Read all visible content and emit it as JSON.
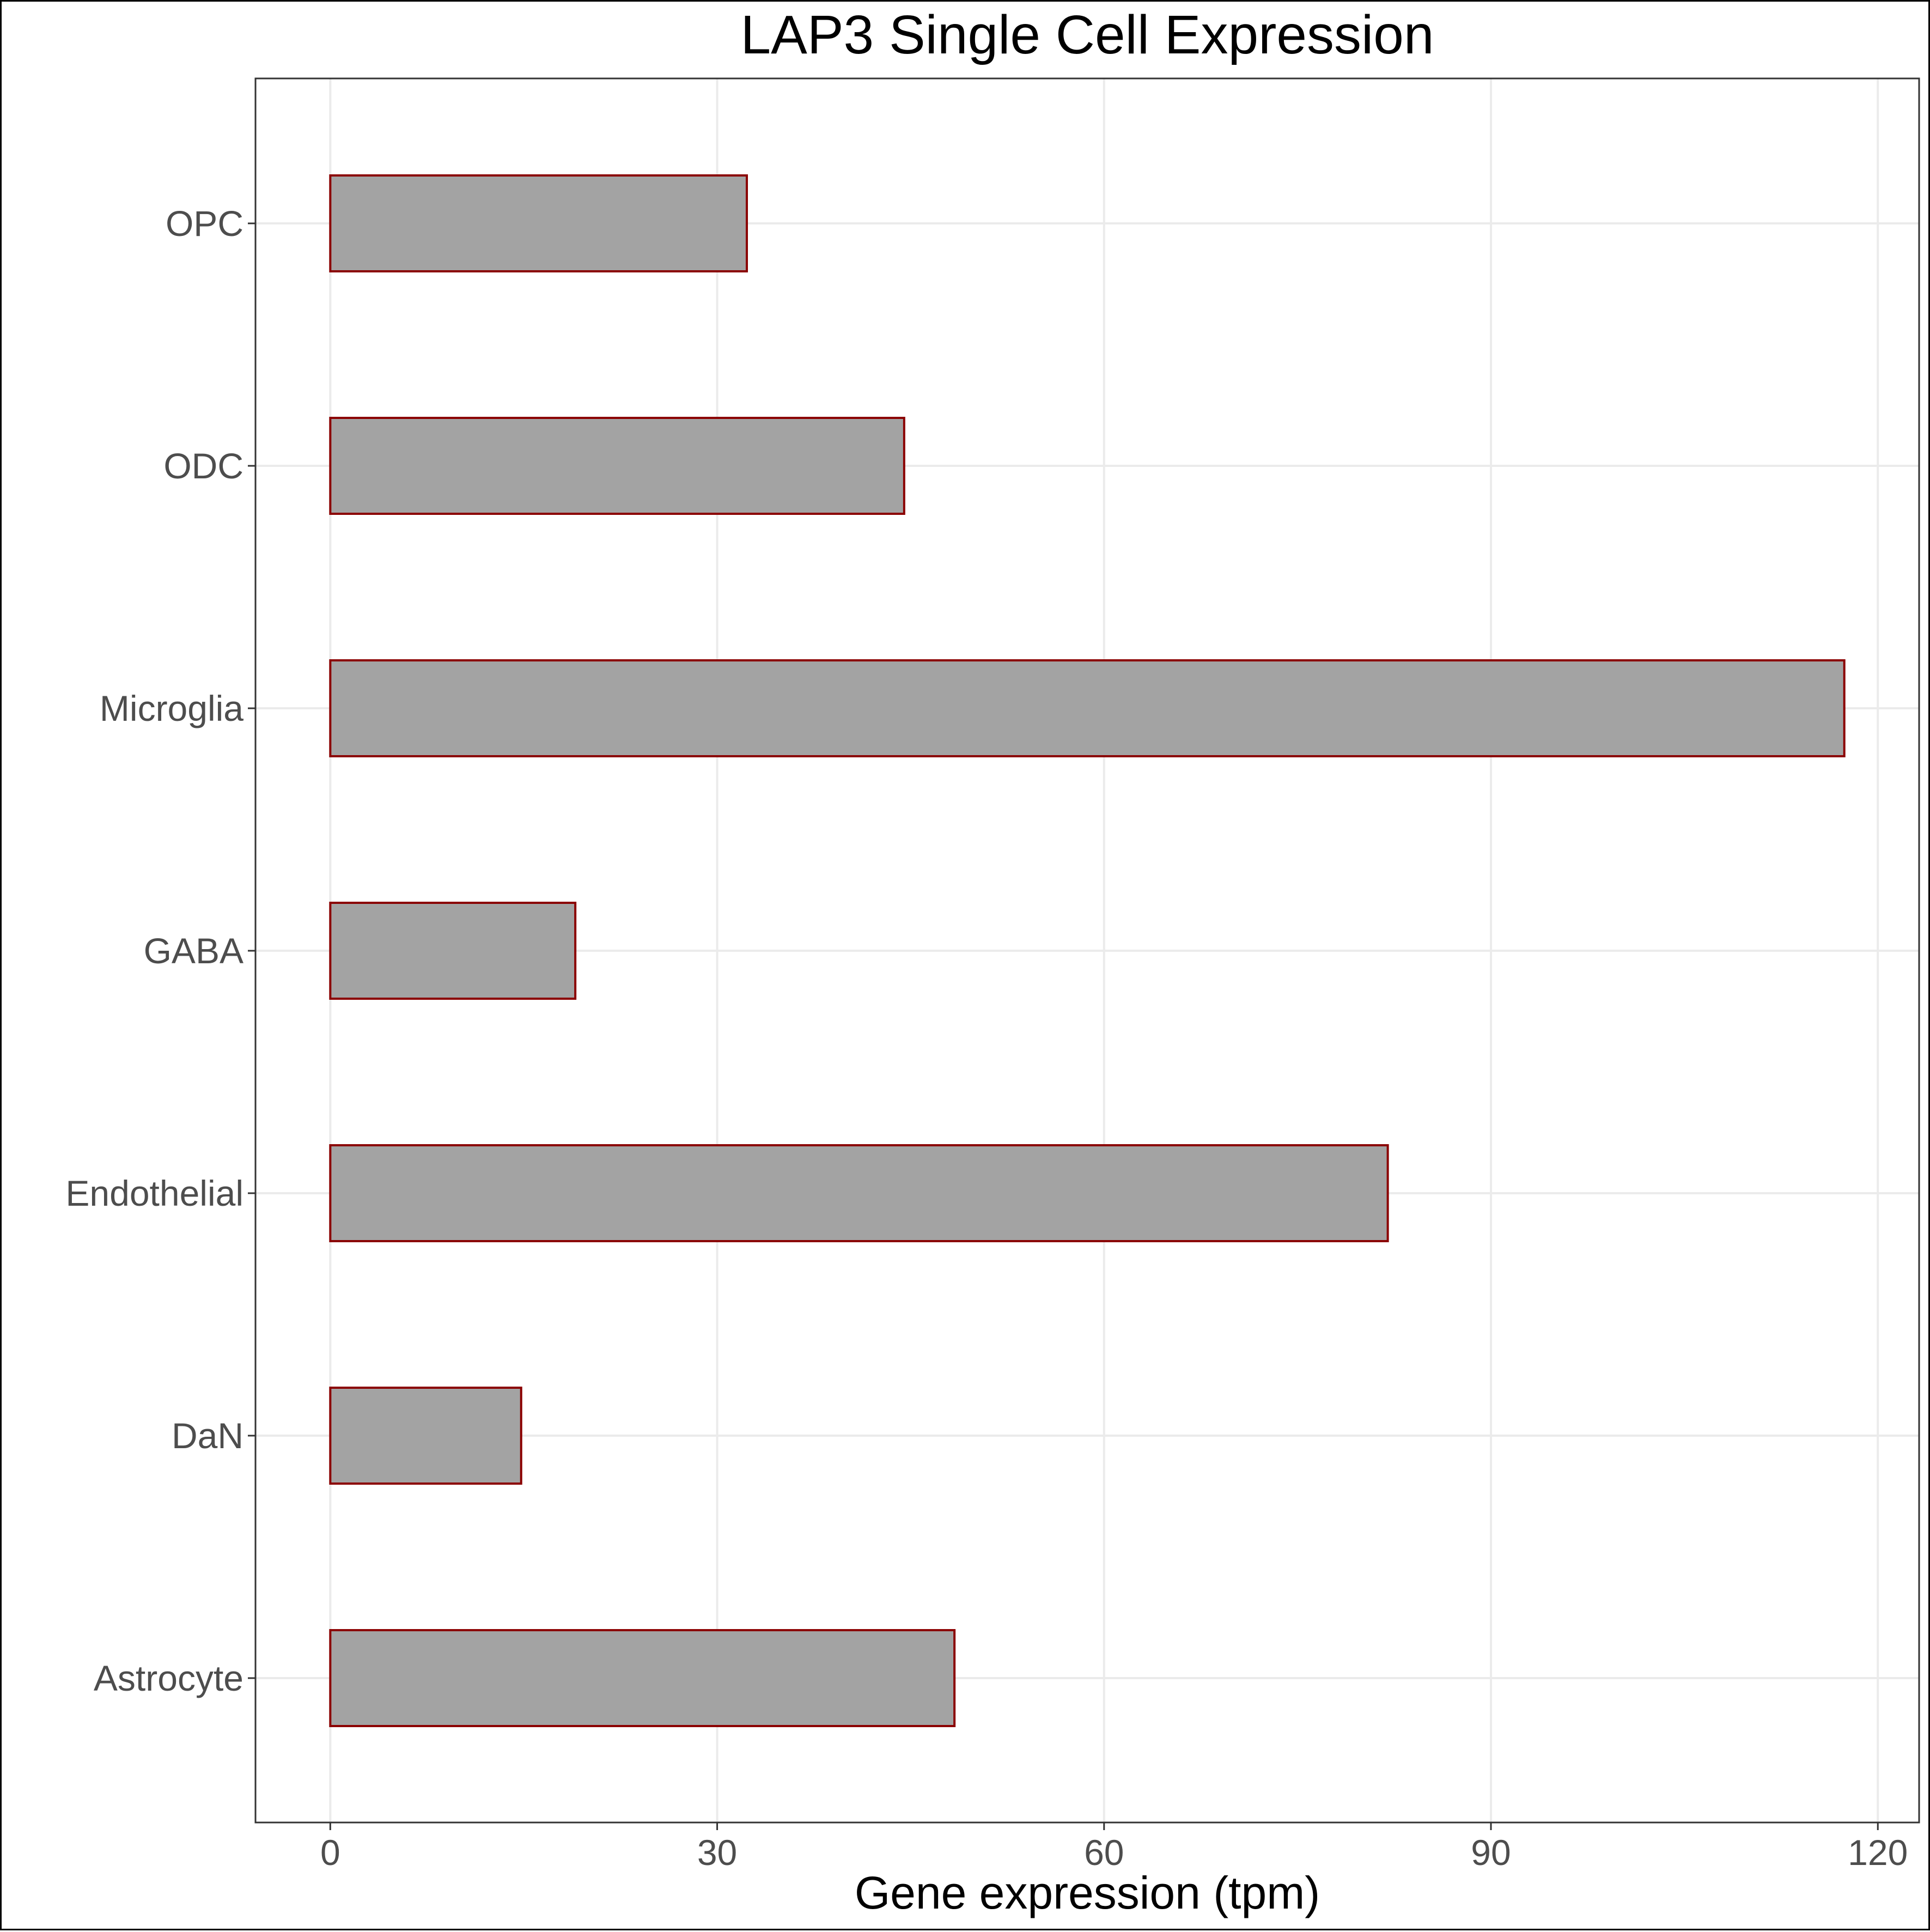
{
  "colors": {
    "bar_fill": "#a3a3a3",
    "bar_stroke": "#8b0000",
    "gridline": "#ebebeb",
    "panel_border": "#333333",
    "tick_label": "#4d4d4d",
    "title": "#000000"
  },
  "chart_data": {
    "type": "bar",
    "orientation": "horizontal",
    "title": "LAP3 Single Cell Expression",
    "xlabel": "Gene expression (tpm)",
    "ylabel": "",
    "categories": [
      "Astrocyte",
      "DaN",
      "Endothelial",
      "GABA",
      "Microglia",
      "ODC",
      "OPC"
    ],
    "values": [
      48.4,
      14.8,
      82.0,
      19.0,
      117.4,
      44.5,
      32.3
    ],
    "xlim": [
      -5.8,
      123.2
    ],
    "xticks": [
      0,
      30,
      60,
      90,
      120
    ],
    "xtick_labels": [
      "0",
      "30",
      "60",
      "90",
      "120"
    ],
    "grid": true,
    "legend": "none"
  }
}
